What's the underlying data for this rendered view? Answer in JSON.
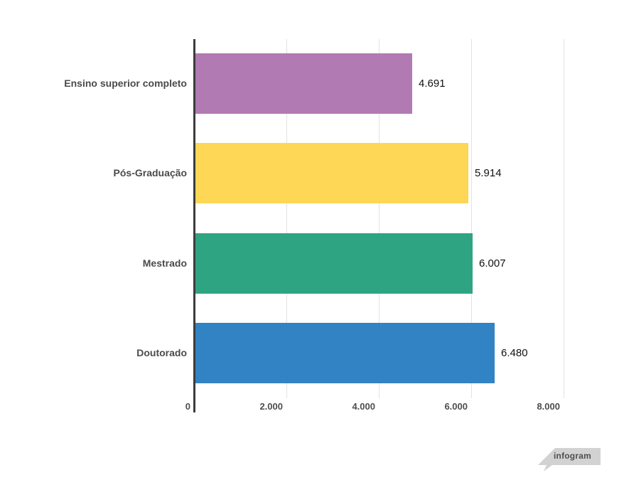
{
  "chart_data": {
    "type": "bar",
    "orientation": "horizontal",
    "title": "",
    "xlabel": "",
    "ylabel": "",
    "categories": [
      "Ensino superior completo",
      "Pós-Graduação",
      "Mestrado",
      "Doutorado"
    ],
    "values": [
      4691,
      5914,
      6007,
      6480
    ],
    "value_labels": [
      "4.691",
      "5.914",
      "6.007",
      "6.480"
    ],
    "bar_colors": [
      "#b27ab3",
      "#fdd755",
      "#2fa483",
      "#3183c3"
    ],
    "x_ticks": [
      0,
      2000,
      4000,
      6000,
      8000
    ],
    "x_tick_labels": [
      "0",
      "2.000",
      "4.000",
      "6.000",
      "8.000"
    ],
    "xlim": [
      0,
      9200
    ],
    "grid": "vertical-only",
    "legend": "none"
  },
  "branding": {
    "logo_text": "infogram"
  },
  "colors": {
    "axis": "#3c3c3c",
    "gridline": "#e2e2e2",
    "category_label": "#4a4a4a",
    "tick_label": "#4d4d4d",
    "value_label": "#111111",
    "badge_bg": "#d2d2d2",
    "badge_text": "#4f4f4f"
  }
}
